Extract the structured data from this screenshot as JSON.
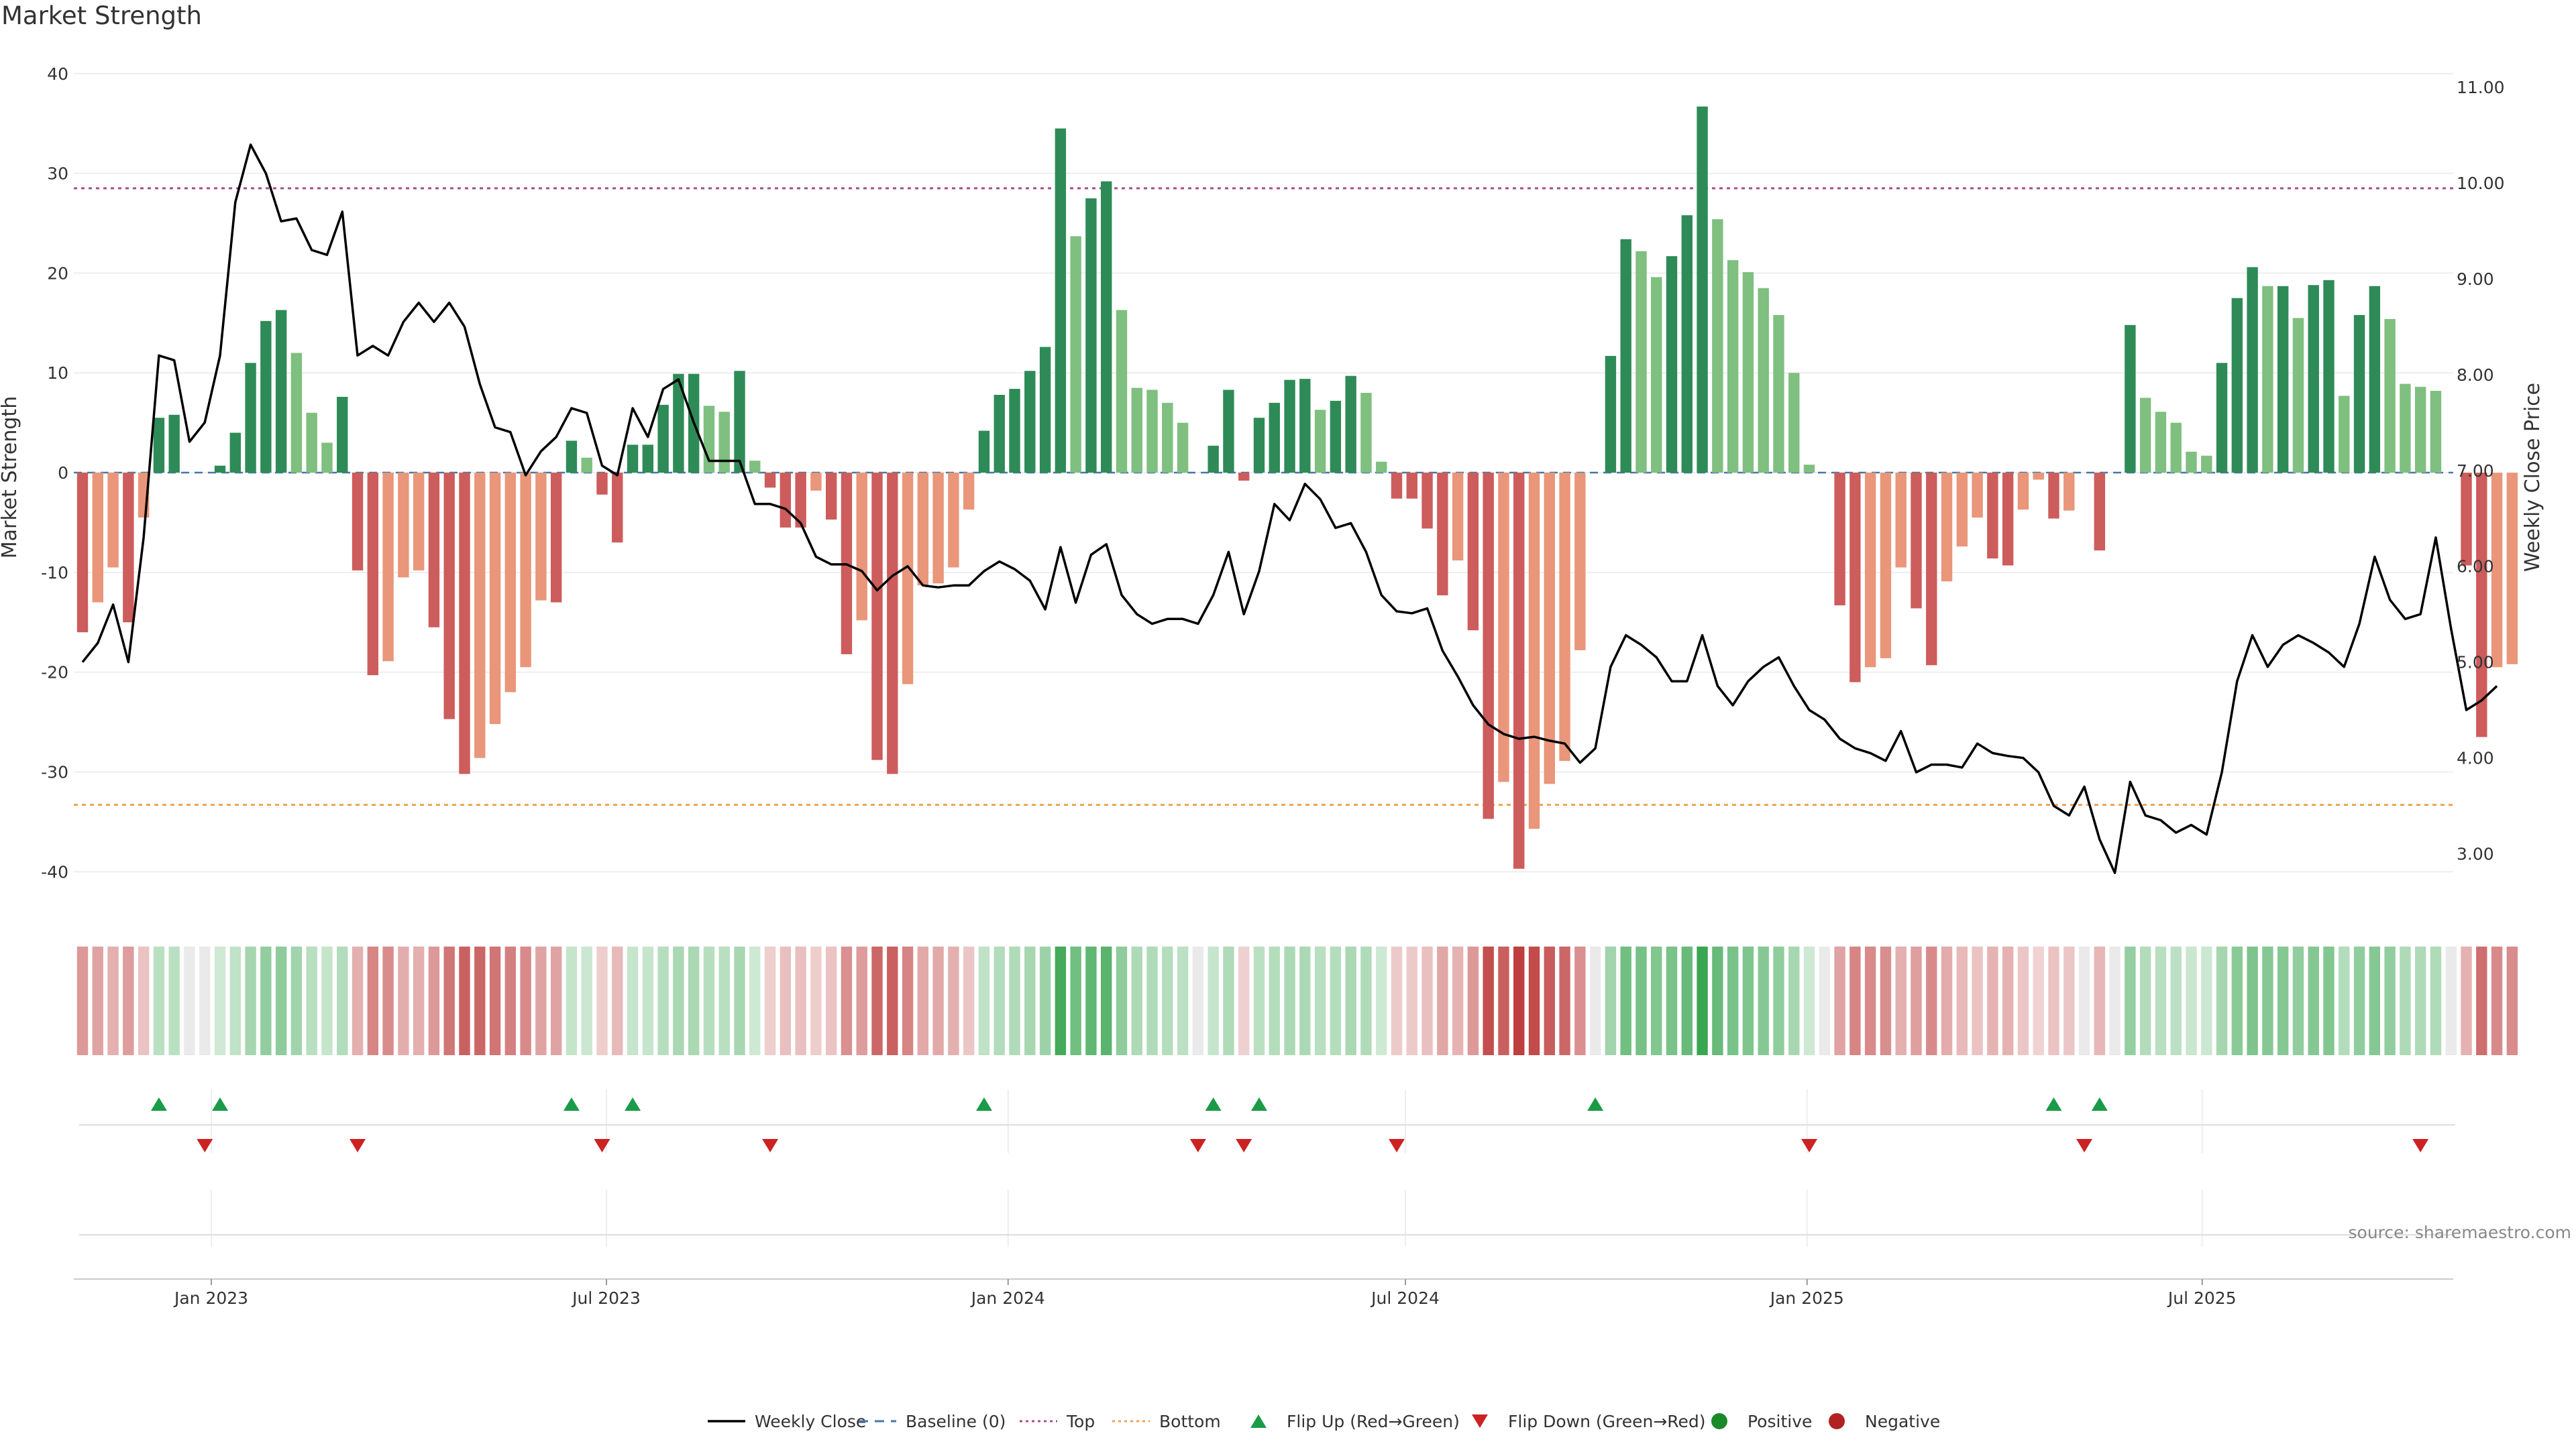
{
  "title": "Market Strength",
  "source": "source: sharemaestro.com",
  "chart_data": {
    "type": "bar",
    "title": "Market Strength",
    "ylabel": "Market Strength",
    "y2label": "Weekly Close Price",
    "ylim": [
      -43,
      42
    ],
    "y2lim": [
      2.5,
      11.35
    ],
    "yticks": [
      40,
      30,
      20,
      10,
      0,
      -10,
      -20,
      -30,
      -40
    ],
    "y2ticks": [
      "11.00",
      "10.00",
      "9.00",
      "8.00",
      "7.00",
      "6.00",
      "5.00",
      "4.00",
      "3.00"
    ],
    "top_level": 28.5,
    "bottom_level": -33.3,
    "x_start": "2022-10-30",
    "x_end": "2025-10-24",
    "bar_start": "2022-11-03",
    "bar_interval_days": 7,
    "xticks": [
      {
        "date": "2023-01-01",
        "label": "Jan 2023"
      },
      {
        "date": "2023-07-01",
        "label": "Jul 2023"
      },
      {
        "date": "2024-01-01",
        "label": "Jan 2024"
      },
      {
        "date": "2024-07-01",
        "label": "Jul 2024"
      },
      {
        "date": "2025-01-01",
        "label": "Jan 2025"
      },
      {
        "date": "2025-07-01",
        "label": "Jul 2025"
      }
    ],
    "strength": [
      -16,
      -13,
      -9.5,
      -15,
      -4.5,
      5.5,
      5.8,
      0,
      0,
      0.7,
      4,
      11,
      15.2,
      16.3,
      12,
      6,
      3,
      7.6,
      -9.8,
      -20.3,
      -18.9,
      -10.5,
      -9.8,
      -15.5,
      -24.7,
      -30.2,
      -28.6,
      -25.2,
      -22,
      -19.5,
      -12.8,
      -13,
      3.2,
      1.5,
      -2.2,
      -7,
      2.8,
      2.8,
      6.8,
      9.9,
      9.9,
      6.7,
      6.1,
      10.2,
      1.2,
      -1.5,
      -5.5,
      -5.5,
      -1.8,
      -4.7,
      -18.2,
      -14.8,
      -28.8,
      -30.2,
      -21.2,
      -11.3,
      -11.1,
      -9.5,
      -3.7,
      4.2,
      7.8,
      8.4,
      10.2,
      12.6,
      34.5,
      23.7,
      27.5,
      29.2,
      16.3,
      8.5,
      8.3,
      7,
      5,
      0,
      2.7,
      8.3,
      -0.8,
      5.5,
      7,
      9.3,
      9.4,
      6.3,
      7.2,
      9.7,
      8,
      1.1,
      -2.6,
      -2.6,
      -5.6,
      -12.3,
      -8.8,
      -15.8,
      -34.7,
      -31,
      -39.7,
      -35.7,
      -31.2,
      -28.9,
      -17.8,
      0,
      11.7,
      23.4,
      22.2,
      19.6,
      21.7,
      25.8,
      36.7,
      25.4,
      21.3,
      20.1,
      18.5,
      15.8,
      10,
      0.8,
      0,
      -13.3,
      -21,
      -19.5,
      -18.6,
      -9.5,
      -13.6,
      -19.3,
      -10.9,
      -7.4,
      -4.5,
      -8.6,
      -9.3,
      -3.7,
      -0.7,
      -4.6,
      -3.8,
      0,
      -7.8,
      0,
      14.8,
      7.5,
      6.1,
      5,
      2.1,
      1.7,
      11,
      17.5,
      20.6,
      18.7,
      18.7,
      15.5,
      18.8,
      19.3,
      7.7,
      15.8,
      18.7,
      15.4,
      8.9,
      8.6,
      8.2,
      0,
      -9.3,
      -26.5,
      -19.5,
      -19.2
    ],
    "price": [
      5,
      5.2,
      5.6,
      5.0,
      6.3,
      8.2,
      8.15,
      7.3,
      7.5,
      8.2,
      9.8,
      10.4,
      10.1,
      9.6,
      9.63,
      9.3,
      9.25,
      9.7,
      8.2,
      8.3,
      8.2,
      8.55,
      8.75,
      8.55,
      8.75,
      8.5,
      7.9,
      7.45,
      7.4,
      6.95,
      7.2,
      7.35,
      7.65,
      7.6,
      7.05,
      6.95,
      7.65,
      7.35,
      7.85,
      7.95,
      7.5,
      7.1,
      7.1,
      7.1,
      6.65,
      6.65,
      6.6,
      6.45,
      6.1,
      6.02,
      6.02,
      5.95,
      5.75,
      5.9,
      6.0,
      5.8,
      5.78,
      5.8,
      5.8,
      5.95,
      6.05,
      5.97,
      5.85,
      5.55,
      6.2,
      5.62,
      6.12,
      6.23,
      5.7,
      5.5,
      5.4,
      5.45,
      5.45,
      5.4,
      5.7,
      6.15,
      5.5,
      5.95,
      6.65,
      6.48,
      6.86,
      6.7,
      6.4,
      6.45,
      6.15,
      5.7,
      5.53,
      5.51,
      5.56,
      5.12,
      4.85,
      4.55,
      4.35,
      4.25,
      4.2,
      4.22,
      4.18,
      4.15,
      3.95,
      4.1,
      4.95,
      5.28,
      5.18,
      5.05,
      4.8,
      4.8,
      5.28,
      4.75,
      4.55,
      4.8,
      4.95,
      5.05,
      4.75,
      4.5,
      4.4,
      4.2,
      4.1,
      4.05,
      3.97,
      4.28,
      3.85,
      3.93,
      3.93,
      3.9,
      4.15,
      4.05,
      4.02,
      4.0,
      3.85,
      3.5,
      3.4,
      3.7,
      3.15,
      2.8,
      3.75,
      3.4,
      3.35,
      3.22,
      3.3,
      3.2,
      3.85,
      4.8,
      5.28,
      4.95,
      5.18,
      5.28,
      5.2,
      5.1,
      4.95,
      5.4,
      6.1,
      5.65,
      5.45,
      5.5,
      6.3,
      5.35,
      4.5,
      4.6,
      4.75
    ],
    "flip_up_index": [
      5,
      9,
      32,
      36,
      59,
      74,
      77,
      99,
      129,
      132
    ],
    "flip_down_index": [
      8,
      18,
      34,
      45,
      73,
      76,
      86,
      113,
      131,
      153
    ],
    "color_strong_positive": "#2e8b57",
    "color_mild_positive": "#7fbf7f",
    "color_strong_negative": "#cd5c5c",
    "color_mild_negative": "#e9967a",
    "color_top_line": "#a64d8f",
    "color_bottom_line": "#f0a050",
    "color_flip_up": "#1a9b47",
    "color_flip_down": "#cc2222",
    "legend": [
      {
        "label": "Weekly Close",
        "kind": "line",
        "color": "#000000"
      },
      {
        "label": "Baseline (0)",
        "kind": "dashed",
        "color": "#4477aa"
      },
      {
        "label": "Top",
        "kind": "dotted",
        "color": "#a64d8f"
      },
      {
        "label": "Bottom",
        "kind": "dotted",
        "color": "#f0a050"
      },
      {
        "label": "Flip Up (Red→Green)",
        "kind": "tri-up",
        "color": "#1a9b47"
      },
      {
        "label": "Flip Down (Green→Red)",
        "kind": "tri-down",
        "color": "#cc2222"
      },
      {
        "label": "Positive",
        "kind": "dot",
        "color": "#1a8a2a"
      },
      {
        "label": "Negative",
        "kind": "dot",
        "color": "#b22222"
      }
    ]
  }
}
